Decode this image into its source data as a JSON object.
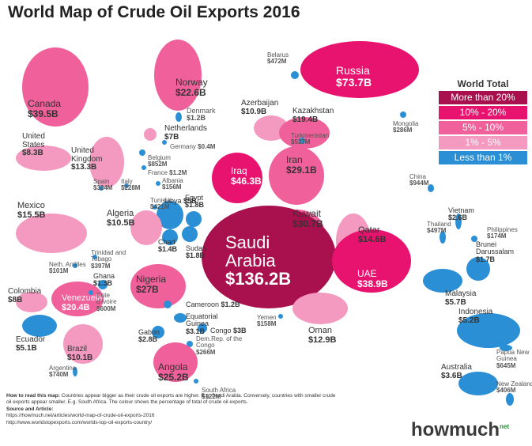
{
  "header": {
    "title": "World Map of Crude Oil Exports 2016"
  },
  "legend": {
    "title": "World Total",
    "items": [
      {
        "label": "More than 20%",
        "color": "#a8114d"
      },
      {
        "label": "10% - 20%",
        "color": "#e8136f"
      },
      {
        "label": "5% - 10%",
        "color": "#f0609a"
      },
      {
        "label": "1% - 5%",
        "color": "#f49ac0"
      },
      {
        "label": "Less than 1%",
        "color": "#2b8fd6"
      }
    ]
  },
  "countries": [
    {
      "name": "Russia",
      "value": "$73.7B",
      "color": "#e8136f"
    },
    {
      "name": "Norway",
      "value": "$22.6B",
      "color": "#f0609a"
    },
    {
      "name": "Canada",
      "value": "$39.5B",
      "color": "#f0609a"
    },
    {
      "name": "Belarus",
      "value": "$472M",
      "color": "#2b8fd6"
    },
    {
      "name": "Azerbaijan",
      "value": "$10.9B",
      "color": "#f49ac0"
    },
    {
      "name": "Kazakhstan",
      "value": "$19.4B",
      "color": "#f0609a"
    },
    {
      "name": "Mongolia",
      "value": "$286M",
      "color": "#2b8fd6"
    },
    {
      "name": "Turkmenistan",
      "value": "$537M",
      "color": "#2b8fd6"
    },
    {
      "name": "Denmark",
      "value": "$1.2B",
      "color": "#2b8fd6"
    },
    {
      "name": "Netherlands",
      "value": "$7B",
      "color": "#f49ac0"
    },
    {
      "name": "Germany",
      "value": "$0.4M",
      "color": "#2b8fd6"
    },
    {
      "name": "United States",
      "value": "$8.3B",
      "color": "#f49ac0"
    },
    {
      "name": "United Kingdom",
      "value": "$13.3B",
      "color": "#f49ac0"
    },
    {
      "name": "Belgium",
      "value": "$852M",
      "color": "#2b8fd6"
    },
    {
      "name": "France",
      "value": "$1.2M",
      "color": "#2b8fd6"
    },
    {
      "name": "Spain",
      "value": "$324M",
      "color": "#2b8fd6"
    },
    {
      "name": "Italy",
      "value": "$228M",
      "color": "#2b8fd6"
    },
    {
      "name": "Albania",
      "value": "$156M",
      "color": "#2b8fd6"
    },
    {
      "name": "Iran",
      "value": "$29.1B",
      "color": "#f0609a"
    },
    {
      "name": "Iraq",
      "value": "$46.3B",
      "color": "#e8136f"
    },
    {
      "name": "China",
      "value": "$944M",
      "color": "#2b8fd6"
    },
    {
      "name": "Mexico",
      "value": "$15.5B",
      "color": "#f49ac0"
    },
    {
      "name": "Tunisia",
      "value": "$421M",
      "color": "#2b8fd6"
    },
    {
      "name": "Libya",
      "value": "$5B",
      "color": "#2b8fd6"
    },
    {
      "name": "Egypt",
      "value": "$1.8B",
      "color": "#2b8fd6"
    },
    {
      "name": "Algeria",
      "value": "$10.5B",
      "color": "#f49ac0"
    },
    {
      "name": "Chad",
      "value": "$1.4B",
      "color": "#2b8fd6"
    },
    {
      "name": "Sudan",
      "value": "$1.8B",
      "color": "#2b8fd6"
    },
    {
      "name": "Kuwait",
      "value": "$30.7B",
      "color": "#f0609a"
    },
    {
      "name": "Qatar",
      "value": "$14.6B",
      "color": "#f49ac0"
    },
    {
      "name": "Vietnam",
      "value": "$2.6B",
      "color": "#2b8fd6"
    },
    {
      "name": "Thailand",
      "value": "$497M",
      "color": "#2b8fd6"
    },
    {
      "name": "Philippines",
      "value": "$174M",
      "color": "#2b8fd6"
    },
    {
      "name": "Brunei Darussalam",
      "value": "$1.7B",
      "color": "#2b8fd6"
    },
    {
      "name": "Saudi Arabia",
      "value": "$136.2B",
      "color": "#a8114d"
    },
    {
      "name": "UAE",
      "value": "$38.9B",
      "color": "#e8136f"
    },
    {
      "name": "Trinidad and Tobago",
      "value": "$397M",
      "color": "#2b8fd6"
    },
    {
      "name": "Neth. Antilles",
      "value": "$101M",
      "color": "#2b8fd6"
    },
    {
      "name": "Ghana",
      "value": "$1.3B",
      "color": "#2b8fd6"
    },
    {
      "name": "Nigeria",
      "value": "$27B",
      "color": "#f0609a"
    },
    {
      "name": "Colombia",
      "value": "$8B",
      "color": "#f49ac0"
    },
    {
      "name": "Venezuela",
      "value": "$20.4B",
      "color": "#f0609a"
    },
    {
      "name": "Cote d'Ivoire",
      "value": "$600M",
      "color": "#2b8fd6"
    },
    {
      "name": "Malaysia",
      "value": "$5.7B",
      "color": "#2b8fd6"
    },
    {
      "name": "Cameroon",
      "value": "$1.2B",
      "color": "#2b8fd6"
    },
    {
      "name": "Equatorial Guinea",
      "value": "$3.1B",
      "color": "#2b8fd6"
    },
    {
      "name": "Congo",
      "value": "$3B",
      "color": "#2b8fd6"
    },
    {
      "name": "Gabon",
      "value": "$2.8B",
      "color": "#2b8fd6"
    },
    {
      "name": "Yemen",
      "value": "$158M",
      "color": "#2b8fd6"
    },
    {
      "name": "Oman",
      "value": "$12.9B",
      "color": "#f49ac0"
    },
    {
      "name": "Indonesia",
      "value": "$5.2B",
      "color": "#2b8fd6"
    },
    {
      "name": "Ecuador",
      "value": "$5.1B",
      "color": "#2b8fd6"
    },
    {
      "name": "Brazil",
      "value": "$10.1B",
      "color": "#f49ac0"
    },
    {
      "name": "Dem.Rep. of the Congo",
      "value": "$266M",
      "color": "#2b8fd6"
    },
    {
      "name": "Argentina",
      "value": "$740M",
      "color": "#2b8fd6"
    },
    {
      "name": "Angola",
      "value": "$25.2B",
      "color": "#f0609a"
    },
    {
      "name": "Papua New Guinea",
      "value": "$645M",
      "color": "#2b8fd6"
    },
    {
      "name": "Australia",
      "value": "$3.6B",
      "color": "#2b8fd6"
    },
    {
      "name": "South Africa",
      "value": "$122M",
      "color": "#2b8fd6"
    },
    {
      "name": "New Zealand",
      "value": "$406M",
      "color": "#2b8fd6"
    }
  ],
  "footer": {
    "how_to_title": "How to read this map:",
    "how_to_text": "Countries appear bigger as their crude oil exports are higher. E.g. Saudi Arabia. Conversely, countries with smaller crude oil exports appear smaller. E.g. South Africa. The colour shows the percentage of total of crude oil exports.",
    "source_title": "Source and Article:",
    "links": [
      "https://howmuch.net/articles/world-map-of-crude-oil-exports-2016",
      "http://www.worldstopexports.com/worlds-top-oil-exports-country/"
    ],
    "logo": "howmuch",
    "logo_suffix": "net"
  }
}
